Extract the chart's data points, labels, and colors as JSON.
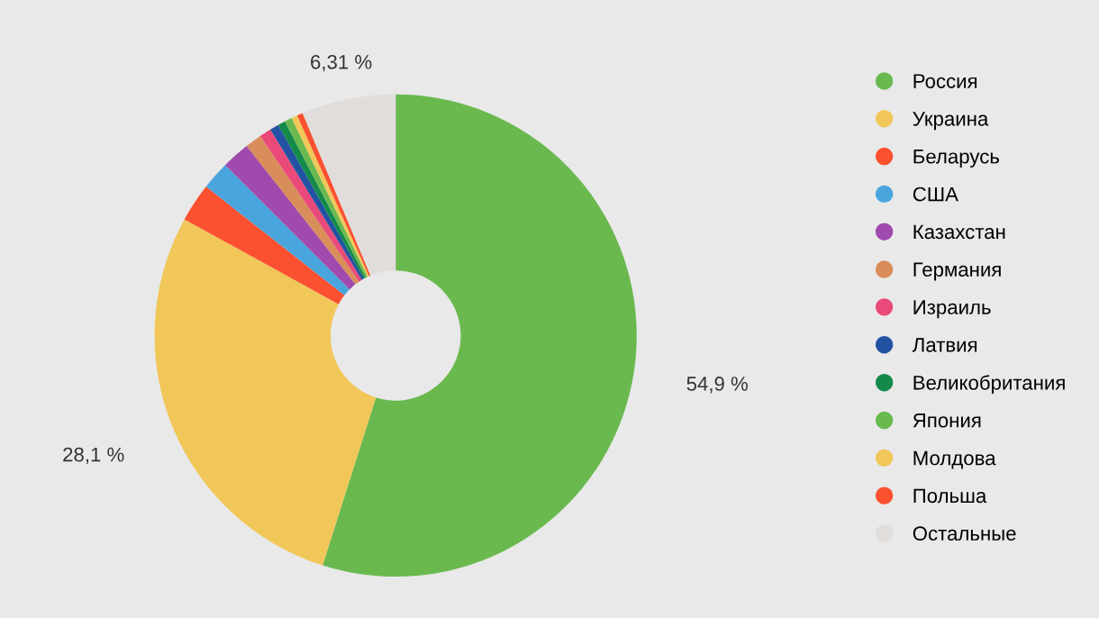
{
  "chart_data": {
    "type": "donut",
    "categories": [
      "Россия",
      "Украина",
      "Беларусь",
      "США",
      "Казахстан",
      "Германия",
      "Израиль",
      "Латвия",
      "Великобритания",
      "Япония",
      "Молдова",
      "Польша",
      "Остальные"
    ],
    "values": [
      54.9,
      28.1,
      2.6,
      1.9,
      1.9,
      1.1,
      0.8,
      0.6,
      0.5,
      0.5,
      0.4,
      0.39,
      6.31
    ],
    "colors": [
      "#6ab94f",
      "#f1c75a",
      "#fb5130",
      "#4aa5dd",
      "#a04aae",
      "#d98d5a",
      "#ea4a7a",
      "#2352a3",
      "#138a4a",
      "#6ab94f",
      "#f1c75a",
      "#fb5130",
      "#e0dddb"
    ],
    "value_labels": [
      "54,9 %",
      "28,1 %",
      null,
      null,
      null,
      null,
      null,
      null,
      null,
      null,
      null,
      null,
      "6,31 %"
    ],
    "legend": "right"
  }
}
